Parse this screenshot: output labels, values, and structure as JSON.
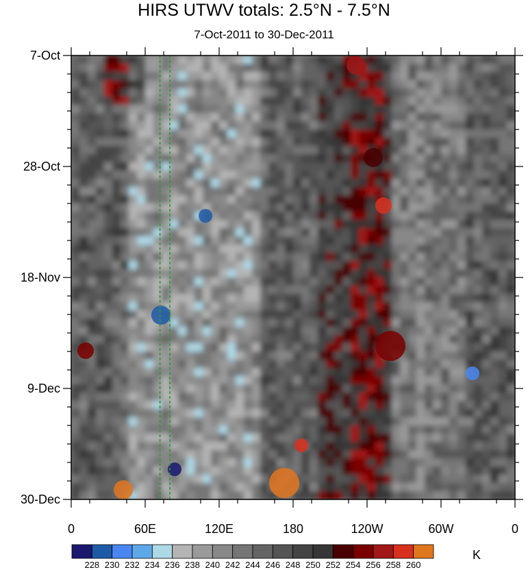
{
  "chart_data": {
    "type": "heatmap",
    "title": "HIRS UTWV totals: 2.5°N - 7.5°N",
    "subtitle": "7-Oct-2011 to 30-Dec-2011",
    "x_ticks": [
      "0",
      "60E",
      "120E",
      "180",
      "120W",
      "60W",
      "0"
    ],
    "y_ticks": [
      "7-Oct",
      "28-Oct",
      "18-Nov",
      "9-Dec",
      "30-Dec"
    ],
    "x_range_deg_east": [
      0,
      360
    ],
    "y_range": [
      "7-Oct-2011",
      "30-Dec-2011"
    ],
    "colorbar_levels": [
      "228",
      "230",
      "232",
      "234",
      "236",
      "238",
      "240",
      "242",
      "244",
      "246",
      "248",
      "250",
      "252",
      "254",
      "256",
      "258",
      "260"
    ],
    "colorbar_colors": [
      "#191970",
      "#1f5aa6",
      "#4a86f0",
      "#5fa8e8",
      "#add8e6",
      "#b4b4b4",
      "#9a9a9a",
      "#888888",
      "#767676",
      "#646464",
      "#545454",
      "#444444",
      "#363636",
      "#4a0000",
      "#7a0000",
      "#a11818",
      "#d8301e",
      "#e0761e"
    ],
    "units": "K",
    "reference_lines_deg_east": [
      72,
      80
    ],
    "reference_line_color": "#22a032"
  }
}
